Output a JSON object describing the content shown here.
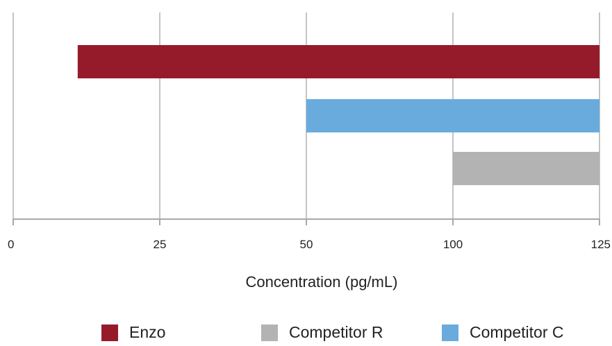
{
  "chart_data": {
    "type": "bar",
    "orientation": "horizontal",
    "title": "",
    "xlabel": "Concentration (pg/mL)",
    "ylabel": "",
    "x_ticks": [
      0,
      25,
      50,
      100,
      125
    ],
    "x_tick_labels": [
      "0",
      "25",
      "50",
      "100",
      "125"
    ],
    "grid": true,
    "legend_position": "bottom",
    "series": [
      {
        "name": "Enzo",
        "start": 11,
        "end": 125,
        "color": "#951B2B"
      },
      {
        "name": "Competitor C",
        "start": 50,
        "end": 125,
        "color": "#6AABDD"
      },
      {
        "name": "Competitor R",
        "start": 100,
        "end": 125,
        "color": "#B3B3B3"
      }
    ]
  },
  "legend": {
    "items": [
      {
        "label": "Enzo",
        "color": "#951B2B"
      },
      {
        "label": "Competitor R",
        "color": "#B3B3B3"
      },
      {
        "label": "Competitor C",
        "color": "#6AABDD"
      }
    ]
  }
}
